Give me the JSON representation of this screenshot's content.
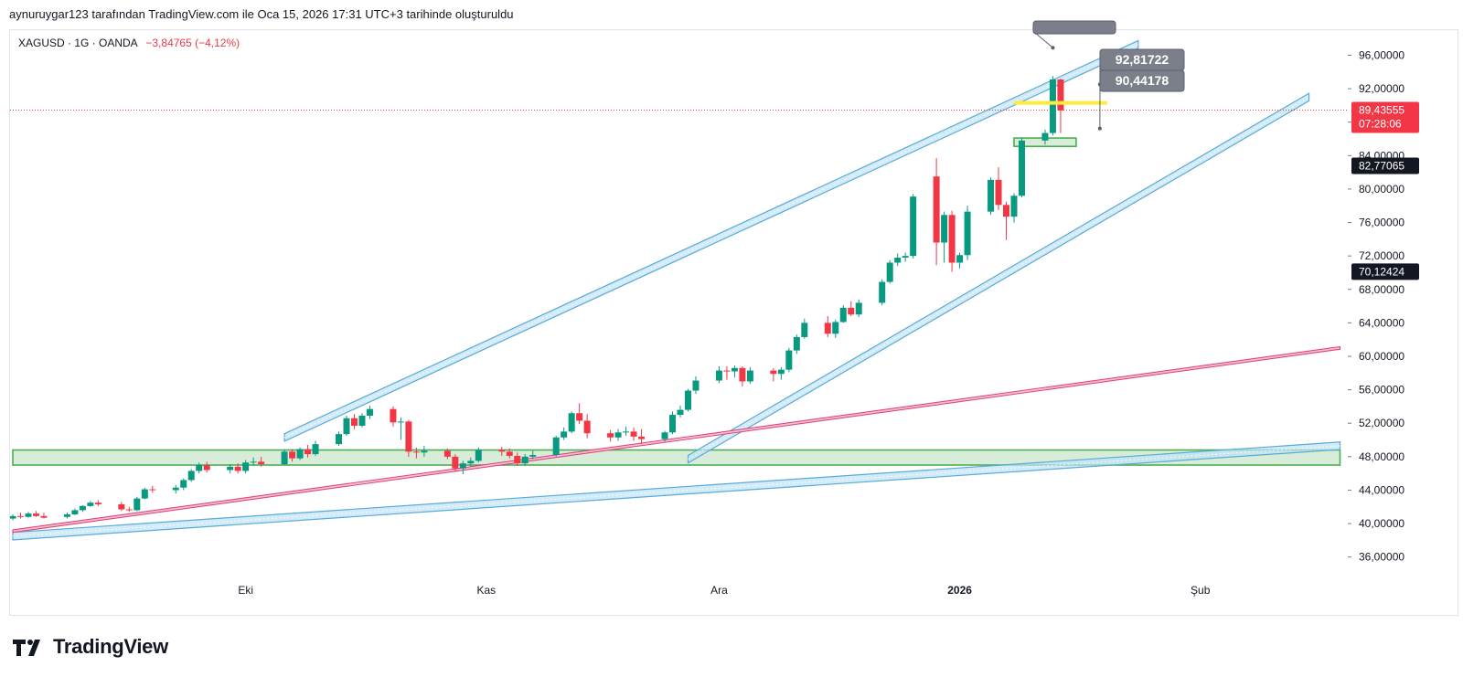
{
  "header": {
    "attribution": "aynuruygar123 tarafından TradingView.com ile Oca 15, 2026 17:31 UTC+3 tarihinde oluşturuldu"
  },
  "symbol": {
    "name": "XAGUSD · 1G · OANDA",
    "change": "−3,84765 (−4,12%)"
  },
  "footer": {
    "brand": "TradingView"
  },
  "colors": {
    "up": "#089981",
    "down": "#f23645",
    "channel": "#5aa9d6",
    "trend": "#e0457b",
    "zone": "#4caf50",
    "marker": "#ffeb3b",
    "label_bg": "#7b7f8a"
  },
  "chart_data": {
    "type": "candlestick",
    "y_axis": {
      "range": [
        34,
        99
      ],
      "ticks": [
        "36,00000",
        "40,00000",
        "44,00000",
        "48,00000",
        "52,00000",
        "56,00000",
        "60,00000",
        "64,00000",
        "68,00000",
        "72,00000",
        "76,00000",
        "80,00000",
        "84,00000",
        "88,00000",
        "92,00000",
        "96,00000"
      ]
    },
    "x_axis": {
      "range": [
        "2025-09-01",
        "2026-02-20"
      ],
      "ticks": [
        {
          "label": "Eki",
          "date": "2025-10-01",
          "bold": false
        },
        {
          "label": "Kas",
          "date": "2025-11-01",
          "bold": false
        },
        {
          "label": "Ara",
          "date": "2025-12-01",
          "bold": false
        },
        {
          "label": "2026",
          "date": "2026-01-01",
          "bold": true
        },
        {
          "label": "Şub",
          "date": "2026-02-01",
          "bold": false
        }
      ]
    },
    "price_labels": [
      {
        "value": 89.43555,
        "text": "89,43555",
        "sub": "07:28:06",
        "style": "current"
      },
      {
        "value": 82.77065,
        "text": "82,77065",
        "style": "dark"
      },
      {
        "value": 70.12424,
        "text": "70,12424",
        "style": "dark"
      }
    ],
    "current_price": 89.43555,
    "candles": [
      {
        "d": "2025-09-01",
        "o": 40.6,
        "h": 41.1,
        "l": 40.4,
        "c": 40.9
      },
      {
        "d": "2025-09-02",
        "o": 40.9,
        "h": 41.3,
        "l": 40.6,
        "c": 40.8
      },
      {
        "d": "2025-09-03",
        "o": 40.8,
        "h": 41.4,
        "l": 40.7,
        "c": 41.2
      },
      {
        "d": "2025-09-04",
        "o": 41.2,
        "h": 41.5,
        "l": 40.8,
        "c": 40.9
      },
      {
        "d": "2025-09-05",
        "o": 40.9,
        "h": 41.3,
        "l": 40.6,
        "c": 40.7
      },
      {
        "d": "2025-09-08",
        "o": 40.8,
        "h": 41.3,
        "l": 40.6,
        "c": 41.1
      },
      {
        "d": "2025-09-09",
        "o": 41.1,
        "h": 41.8,
        "l": 41.0,
        "c": 41.6
      },
      {
        "d": "2025-09-10",
        "o": 41.6,
        "h": 42.2,
        "l": 41.4,
        "c": 42.1
      },
      {
        "d": "2025-09-11",
        "o": 42.1,
        "h": 42.7,
        "l": 42.0,
        "c": 42.5
      },
      {
        "d": "2025-09-12",
        "o": 42.5,
        "h": 42.8,
        "l": 42.1,
        "c": 42.3
      },
      {
        "d": "2025-09-15",
        "o": 42.3,
        "h": 42.6,
        "l": 41.5,
        "c": 41.7
      },
      {
        "d": "2025-09-16",
        "o": 41.7,
        "h": 42.0,
        "l": 41.4,
        "c": 41.6
      },
      {
        "d": "2025-09-17",
        "o": 41.6,
        "h": 43.2,
        "l": 41.5,
        "c": 43.0
      },
      {
        "d": "2025-09-18",
        "o": 43.0,
        "h": 44.3,
        "l": 42.9,
        "c": 44.1
      },
      {
        "d": "2025-09-19",
        "o": 44.1,
        "h": 44.5,
        "l": 43.7,
        "c": 44.0
      },
      {
        "d": "2025-09-22",
        "o": 44.0,
        "h": 44.6,
        "l": 43.6,
        "c": 44.3
      },
      {
        "d": "2025-09-23",
        "o": 44.3,
        "h": 45.4,
        "l": 44.0,
        "c": 45.2
      },
      {
        "d": "2025-09-24",
        "o": 45.2,
        "h": 46.5,
        "l": 45.0,
        "c": 46.3
      },
      {
        "d": "2025-09-25",
        "o": 46.3,
        "h": 47.3,
        "l": 46.0,
        "c": 47.0
      },
      {
        "d": "2025-09-26",
        "o": 47.0,
        "h": 47.4,
        "l": 46.1,
        "c": 46.4
      },
      {
        "d": "2025-09-29",
        "o": 46.4,
        "h": 47.1,
        "l": 46.0,
        "c": 46.8
      },
      {
        "d": "2025-09-30",
        "o": 46.8,
        "h": 47.2,
        "l": 46.0,
        "c": 46.3
      },
      {
        "d": "2025-10-01",
        "o": 46.3,
        "h": 47.6,
        "l": 46.0,
        "c": 47.3
      },
      {
        "d": "2025-10-02",
        "o": 47.3,
        "h": 47.9,
        "l": 46.9,
        "c": 47.4
      },
      {
        "d": "2025-10-03",
        "o": 47.4,
        "h": 48.0,
        "l": 46.8,
        "c": 47.1
      },
      {
        "d": "2025-10-06",
        "o": 47.1,
        "h": 48.9,
        "l": 47.0,
        "c": 48.6
      },
      {
        "d": "2025-10-07",
        "o": 48.6,
        "h": 48.9,
        "l": 47.4,
        "c": 47.8
      },
      {
        "d": "2025-10-08",
        "o": 47.8,
        "h": 49.1,
        "l": 47.6,
        "c": 48.9
      },
      {
        "d": "2025-10-09",
        "o": 48.9,
        "h": 49.4,
        "l": 47.9,
        "c": 48.3
      },
      {
        "d": "2025-10-10",
        "o": 48.3,
        "h": 49.9,
        "l": 48.1,
        "c": 49.5
      },
      {
        "d": "2025-10-13",
        "o": 49.5,
        "h": 51.0,
        "l": 49.3,
        "c": 50.7
      },
      {
        "d": "2025-10-14",
        "o": 50.7,
        "h": 52.9,
        "l": 50.5,
        "c": 52.6
      },
      {
        "d": "2025-10-15",
        "o": 52.6,
        "h": 53.1,
        "l": 51.3,
        "c": 51.7
      },
      {
        "d": "2025-10-16",
        "o": 51.7,
        "h": 53.2,
        "l": 51.5,
        "c": 52.9
      },
      {
        "d": "2025-10-17",
        "o": 52.9,
        "h": 54.1,
        "l": 52.5,
        "c": 53.7
      },
      {
        "d": "2025-10-20",
        "o": 53.7,
        "h": 54.0,
        "l": 51.6,
        "c": 52.1
      },
      {
        "d": "2025-10-21",
        "o": 52.1,
        "h": 52.7,
        "l": 50.0,
        "c": 52.2
      },
      {
        "d": "2025-10-22",
        "o": 52.2,
        "h": 52.4,
        "l": 48.0,
        "c": 48.6
      },
      {
        "d": "2025-10-23",
        "o": 48.6,
        "h": 49.1,
        "l": 47.8,
        "c": 48.5
      },
      {
        "d": "2025-10-24",
        "o": 48.5,
        "h": 49.3,
        "l": 48.0,
        "c": 48.7
      },
      {
        "d": "2025-10-27",
        "o": 48.7,
        "h": 49.0,
        "l": 47.7,
        "c": 48.0
      },
      {
        "d": "2025-10-28",
        "o": 48.0,
        "h": 48.3,
        "l": 46.2,
        "c": 46.6
      },
      {
        "d": "2025-10-29",
        "o": 46.6,
        "h": 47.5,
        "l": 45.9,
        "c": 47.2
      },
      {
        "d": "2025-10-30",
        "o": 47.2,
        "h": 47.9,
        "l": 46.8,
        "c": 47.5
      },
      {
        "d": "2025-10-31",
        "o": 47.5,
        "h": 49.1,
        "l": 47.3,
        "c": 48.8
      },
      {
        "d": "2025-11-03",
        "o": 48.8,
        "h": 49.2,
        "l": 48.1,
        "c": 48.6
      },
      {
        "d": "2025-11-04",
        "o": 48.6,
        "h": 49.0,
        "l": 47.8,
        "c": 48.1
      },
      {
        "d": "2025-11-05",
        "o": 48.1,
        "h": 48.5,
        "l": 46.9,
        "c": 47.2
      },
      {
        "d": "2025-11-06",
        "o": 47.2,
        "h": 48.3,
        "l": 46.9,
        "c": 48.0
      },
      {
        "d": "2025-11-07",
        "o": 48.0,
        "h": 48.7,
        "l": 47.7,
        "c": 48.2
      },
      {
        "d": "2025-11-10",
        "o": 48.2,
        "h": 50.5,
        "l": 48.0,
        "c": 50.3
      },
      {
        "d": "2025-11-11",
        "o": 50.3,
        "h": 51.5,
        "l": 50.0,
        "c": 51.0
      },
      {
        "d": "2025-11-12",
        "o": 51.0,
        "h": 53.4,
        "l": 50.8,
        "c": 53.2
      },
      {
        "d": "2025-11-13",
        "o": 53.2,
        "h": 54.4,
        "l": 51.9,
        "c": 52.3
      },
      {
        "d": "2025-11-14",
        "o": 52.3,
        "h": 53.1,
        "l": 50.2,
        "c": 50.8
      },
      {
        "d": "2025-11-17",
        "o": 50.8,
        "h": 51.2,
        "l": 49.8,
        "c": 50.3
      },
      {
        "d": "2025-11-18",
        "o": 50.3,
        "h": 51.3,
        "l": 49.9,
        "c": 50.9
      },
      {
        "d": "2025-11-19",
        "o": 50.9,
        "h": 51.6,
        "l": 50.5,
        "c": 51.0
      },
      {
        "d": "2025-11-20",
        "o": 51.0,
        "h": 51.5,
        "l": 49.9,
        "c": 50.4
      },
      {
        "d": "2025-11-21",
        "o": 50.4,
        "h": 51.3,
        "l": 49.5,
        "c": 50.1
      },
      {
        "d": "2025-11-24",
        "o": 50.1,
        "h": 51.1,
        "l": 49.8,
        "c": 50.9
      },
      {
        "d": "2025-11-25",
        "o": 50.9,
        "h": 53.4,
        "l": 50.7,
        "c": 53.0
      },
      {
        "d": "2025-11-26",
        "o": 53.0,
        "h": 54.1,
        "l": 52.7,
        "c": 53.6
      },
      {
        "d": "2025-11-27",
        "o": 53.6,
        "h": 56.1,
        "l": 53.4,
        "c": 55.9
      },
      {
        "d": "2025-11-28",
        "o": 55.9,
        "h": 57.6,
        "l": 55.5,
        "c": 57.1
      },
      {
        "d": "2025-12-01",
        "o": 57.1,
        "h": 58.8,
        "l": 56.8,
        "c": 58.3
      },
      {
        "d": "2025-12-02",
        "o": 58.3,
        "h": 58.8,
        "l": 57.2,
        "c": 58.2
      },
      {
        "d": "2025-12-03",
        "o": 58.2,
        "h": 58.9,
        "l": 57.5,
        "c": 58.6
      },
      {
        "d": "2025-12-04",
        "o": 58.6,
        "h": 58.8,
        "l": 56.4,
        "c": 57.0
      },
      {
        "d": "2025-12-05",
        "o": 57.0,
        "h": 58.7,
        "l": 56.7,
        "c": 58.3
      },
      {
        "d": "2025-12-08",
        "o": 58.3,
        "h": 58.6,
        "l": 57.0,
        "c": 57.9
      },
      {
        "d": "2025-12-09",
        "o": 57.9,
        "h": 58.7,
        "l": 57.2,
        "c": 58.4
      },
      {
        "d": "2025-12-10",
        "o": 58.4,
        "h": 61.0,
        "l": 58.1,
        "c": 60.7
      },
      {
        "d": "2025-12-11",
        "o": 60.7,
        "h": 62.6,
        "l": 60.3,
        "c": 62.3
      },
      {
        "d": "2025-12-12",
        "o": 62.3,
        "h": 64.5,
        "l": 62.1,
        "c": 64.0
      },
      {
        "d": "2025-12-15",
        "o": 64.0,
        "h": 64.8,
        "l": 62.3,
        "c": 62.7
      },
      {
        "d": "2025-12-16",
        "o": 62.7,
        "h": 64.4,
        "l": 62.2,
        "c": 64.1
      },
      {
        "d": "2025-12-17",
        "o": 64.1,
        "h": 66.1,
        "l": 64.0,
        "c": 65.8
      },
      {
        "d": "2025-12-18",
        "o": 65.8,
        "h": 66.6,
        "l": 64.8,
        "c": 65.0
      },
      {
        "d": "2025-12-19",
        "o": 65.0,
        "h": 66.8,
        "l": 64.7,
        "c": 66.4
      },
      {
        "d": "2025-12-22",
        "o": 66.4,
        "h": 69.2,
        "l": 66.1,
        "c": 68.9
      },
      {
        "d": "2025-12-23",
        "o": 68.9,
        "h": 71.5,
        "l": 68.7,
        "c": 71.2
      },
      {
        "d": "2025-12-24",
        "o": 71.2,
        "h": 72.3,
        "l": 70.8,
        "c": 71.8
      },
      {
        "d": "2025-12-25",
        "o": 71.8,
        "h": 72.4,
        "l": 71.3,
        "c": 72.0
      },
      {
        "d": "2025-12-26",
        "o": 72.0,
        "h": 79.4,
        "l": 71.7,
        "c": 79.1
      },
      {
        "d": "2025-12-29",
        "o": 81.5,
        "h": 83.7,
        "l": 70.9,
        "c": 73.6
      },
      {
        "d": "2025-12-30",
        "o": 73.6,
        "h": 77.3,
        "l": 71.2,
        "c": 76.9
      },
      {
        "d": "2025-12-31",
        "o": 76.9,
        "h": 77.4,
        "l": 70.1,
        "c": 71.2
      },
      {
        "d": "2026-01-01",
        "o": 71.2,
        "h": 72.4,
        "l": 70.5,
        "c": 72.1
      },
      {
        "d": "2026-01-02",
        "o": 72.1,
        "h": 78.0,
        "l": 71.5,
        "c": 77.3
      },
      {
        "d": "2026-01-05",
        "o": 77.3,
        "h": 81.4,
        "l": 76.9,
        "c": 81.1
      },
      {
        "d": "2026-01-06",
        "o": 81.1,
        "h": 82.6,
        "l": 77.5,
        "c": 78.1
      },
      {
        "d": "2026-01-07",
        "o": 78.1,
        "h": 78.5,
        "l": 73.9,
        "c": 76.7
      },
      {
        "d": "2026-01-08",
        "o": 76.7,
        "h": 79.5,
        "l": 76.0,
        "c": 79.2
      },
      {
        "d": "2026-01-09",
        "o": 79.2,
        "h": 86.1,
        "l": 79.0,
        "c": 85.8
      },
      {
        "d": "2026-01-12",
        "o": 85.8,
        "h": 87.1,
        "l": 85.3,
        "c": 86.7
      },
      {
        "d": "2026-01-13",
        "o": 86.7,
        "h": 93.5,
        "l": 86.4,
        "c": 93.1
      },
      {
        "d": "2026-01-14",
        "o": 93.1,
        "h": 93.2,
        "l": 86.7,
        "c": 89.4
      }
    ],
    "channels": [
      {
        "name": "",
        "x1": "2025-10-06",
        "y1": 50.3,
        "x2": "2026-01-24",
        "y2": 97.3,
        "width": 0.9,
        "color": "#5aa9d6"
      },
      {
        "name": "",
        "x1": "2025-11-27",
        "y1": 47.7,
        "x2": "2026-02-15",
        "y2": 91.0,
        "width": 0.9,
        "color": "#5aa9d6"
      },
      {
        "name": "",
        "x1": "2025-09-01",
        "y1": 38.5,
        "x2": "2026-02-19",
        "y2": 49.3,
        "width": 0.9,
        "color": "#5aa9d6"
      }
    ],
    "trendlines": [
      {
        "name": "",
        "x1": "2025-09-01",
        "y1": 39.1,
        "x2": "2026-02-19",
        "y2": 61.0,
        "width": 0.3,
        "color": "#e0457b"
      }
    ],
    "zones": [
      {
        "name": "",
        "x1": "2025-09-01",
        "x2": "2026-02-19",
        "y1": 47.0,
        "y2": 48.8,
        "color": "#4caf50"
      },
      {
        "name": "",
        "x1": "2026-01-08",
        "x2": "2026-01-16",
        "y1": 85.1,
        "y2": 86.1,
        "color": "#4caf50"
      }
    ],
    "markers": [
      {
        "x1": "2026-01-08",
        "x2": "2026-01-20",
        "y": 90.3,
        "color": "#ffeb3b"
      }
    ],
    "callouts": [
      {
        "text": "92,81722",
        "value": 92.81722,
        "anchor_date": "2026-01-20",
        "anchor_value": 92.4
      },
      {
        "text": "90,44178",
        "value": 90.44178,
        "anchor_date": "2026-01-20",
        "anchor_value": 90.3
      },
      {
        "text": "",
        "value": 99.0,
        "anchor_date": "2026-01-13",
        "anchor_value": 96.9
      }
    ]
  }
}
